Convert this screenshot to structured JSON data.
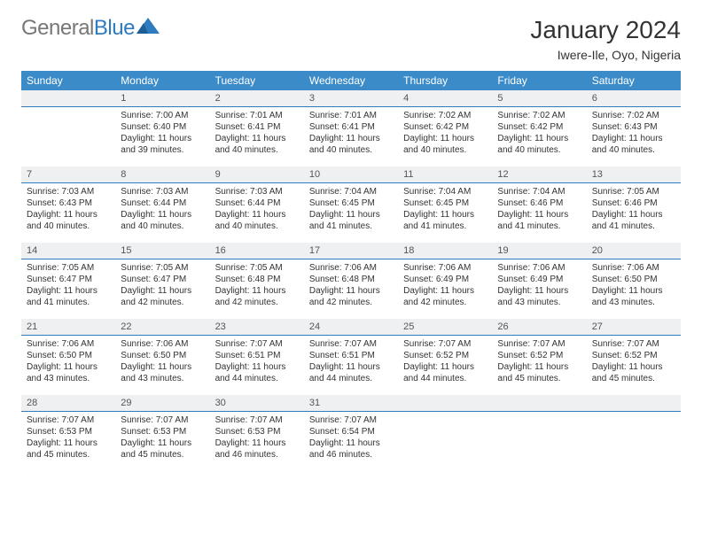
{
  "logo": {
    "part1": "General",
    "part2": "Blue"
  },
  "header": {
    "month": "January 2024",
    "location": "Iwere-Ile, Oyo, Nigeria"
  },
  "weekdays": [
    "Sunday",
    "Monday",
    "Tuesday",
    "Wednesday",
    "Thursday",
    "Friday",
    "Saturday"
  ],
  "colors": {
    "header_bg": "#3b8bc8",
    "header_text": "#ffffff",
    "daybar_bg": "#eef0f1",
    "daybar_border": "#2f7bbf",
    "text": "#333333"
  },
  "layout": {
    "start_weekday": 1,
    "days_in_month": 31
  },
  "days": {
    "1": {
      "sunrise": "7:00 AM",
      "sunset": "6:40 PM",
      "daylight": "11 hours and 39 minutes."
    },
    "2": {
      "sunrise": "7:01 AM",
      "sunset": "6:41 PM",
      "daylight": "11 hours and 40 minutes."
    },
    "3": {
      "sunrise": "7:01 AM",
      "sunset": "6:41 PM",
      "daylight": "11 hours and 40 minutes."
    },
    "4": {
      "sunrise": "7:02 AM",
      "sunset": "6:42 PM",
      "daylight": "11 hours and 40 minutes."
    },
    "5": {
      "sunrise": "7:02 AM",
      "sunset": "6:42 PM",
      "daylight": "11 hours and 40 minutes."
    },
    "6": {
      "sunrise": "7:02 AM",
      "sunset": "6:43 PM",
      "daylight": "11 hours and 40 minutes."
    },
    "7": {
      "sunrise": "7:03 AM",
      "sunset": "6:43 PM",
      "daylight": "11 hours and 40 minutes."
    },
    "8": {
      "sunrise": "7:03 AM",
      "sunset": "6:44 PM",
      "daylight": "11 hours and 40 minutes."
    },
    "9": {
      "sunrise": "7:03 AM",
      "sunset": "6:44 PM",
      "daylight": "11 hours and 40 minutes."
    },
    "10": {
      "sunrise": "7:04 AM",
      "sunset": "6:45 PM",
      "daylight": "11 hours and 41 minutes."
    },
    "11": {
      "sunrise": "7:04 AM",
      "sunset": "6:45 PM",
      "daylight": "11 hours and 41 minutes."
    },
    "12": {
      "sunrise": "7:04 AM",
      "sunset": "6:46 PM",
      "daylight": "11 hours and 41 minutes."
    },
    "13": {
      "sunrise": "7:05 AM",
      "sunset": "6:46 PM",
      "daylight": "11 hours and 41 minutes."
    },
    "14": {
      "sunrise": "7:05 AM",
      "sunset": "6:47 PM",
      "daylight": "11 hours and 41 minutes."
    },
    "15": {
      "sunrise": "7:05 AM",
      "sunset": "6:47 PM",
      "daylight": "11 hours and 42 minutes."
    },
    "16": {
      "sunrise": "7:05 AM",
      "sunset": "6:48 PM",
      "daylight": "11 hours and 42 minutes."
    },
    "17": {
      "sunrise": "7:06 AM",
      "sunset": "6:48 PM",
      "daylight": "11 hours and 42 minutes."
    },
    "18": {
      "sunrise": "7:06 AM",
      "sunset": "6:49 PM",
      "daylight": "11 hours and 42 minutes."
    },
    "19": {
      "sunrise": "7:06 AM",
      "sunset": "6:49 PM",
      "daylight": "11 hours and 43 minutes."
    },
    "20": {
      "sunrise": "7:06 AM",
      "sunset": "6:50 PM",
      "daylight": "11 hours and 43 minutes."
    },
    "21": {
      "sunrise": "7:06 AM",
      "sunset": "6:50 PM",
      "daylight": "11 hours and 43 minutes."
    },
    "22": {
      "sunrise": "7:06 AM",
      "sunset": "6:50 PM",
      "daylight": "11 hours and 43 minutes."
    },
    "23": {
      "sunrise": "7:07 AM",
      "sunset": "6:51 PM",
      "daylight": "11 hours and 44 minutes."
    },
    "24": {
      "sunrise": "7:07 AM",
      "sunset": "6:51 PM",
      "daylight": "11 hours and 44 minutes."
    },
    "25": {
      "sunrise": "7:07 AM",
      "sunset": "6:52 PM",
      "daylight": "11 hours and 44 minutes."
    },
    "26": {
      "sunrise": "7:07 AM",
      "sunset": "6:52 PM",
      "daylight": "11 hours and 45 minutes."
    },
    "27": {
      "sunrise": "7:07 AM",
      "sunset": "6:52 PM",
      "daylight": "11 hours and 45 minutes."
    },
    "28": {
      "sunrise": "7:07 AM",
      "sunset": "6:53 PM",
      "daylight": "11 hours and 45 minutes."
    },
    "29": {
      "sunrise": "7:07 AM",
      "sunset": "6:53 PM",
      "daylight": "11 hours and 45 minutes."
    },
    "30": {
      "sunrise": "7:07 AM",
      "sunset": "6:53 PM",
      "daylight": "11 hours and 46 minutes."
    },
    "31": {
      "sunrise": "7:07 AM",
      "sunset": "6:54 PM",
      "daylight": "11 hours and 46 minutes."
    }
  },
  "labels": {
    "sunrise": "Sunrise: ",
    "sunset": "Sunset: ",
    "daylight": "Daylight: "
  }
}
